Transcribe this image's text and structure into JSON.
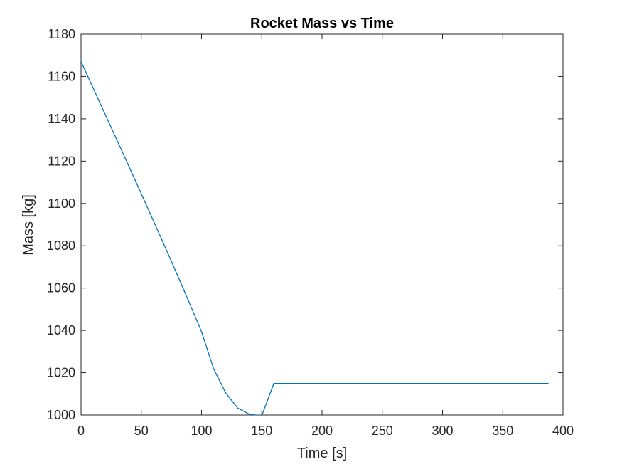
{
  "chart_data": {
    "type": "line",
    "title": "Rocket Mass vs Time",
    "xlabel": "Time [s]",
    "ylabel": "Mass [kg]",
    "xlim": [
      0,
      400
    ],
    "ylim": [
      1000,
      1180
    ],
    "xticks": [
      0,
      50,
      100,
      150,
      200,
      250,
      300,
      350,
      400
    ],
    "yticks": [
      1000,
      1020,
      1040,
      1060,
      1080,
      1100,
      1120,
      1140,
      1160,
      1180
    ],
    "grid": false,
    "legend": "none",
    "series": [
      {
        "color": "#0072BD",
        "x": [
          0,
          10,
          20,
          30,
          40,
          50,
          60,
          70,
          80,
          90,
          100,
          110,
          120,
          130,
          140,
          150,
          160,
          200,
          250,
          300,
          350,
          388
        ],
        "y": [
          1167,
          1154.6,
          1142.1,
          1129.7,
          1117.2,
          1104.6,
          1091.9,
          1079.1,
          1066.1,
          1052.9,
          1039.4,
          1021.9,
          1010.5,
          1003.3,
          1000.3,
          999.7,
          1014.9,
          1014.9,
          1014.9,
          1014.9,
          1014.9,
          1014.9
        ]
      }
    ]
  }
}
